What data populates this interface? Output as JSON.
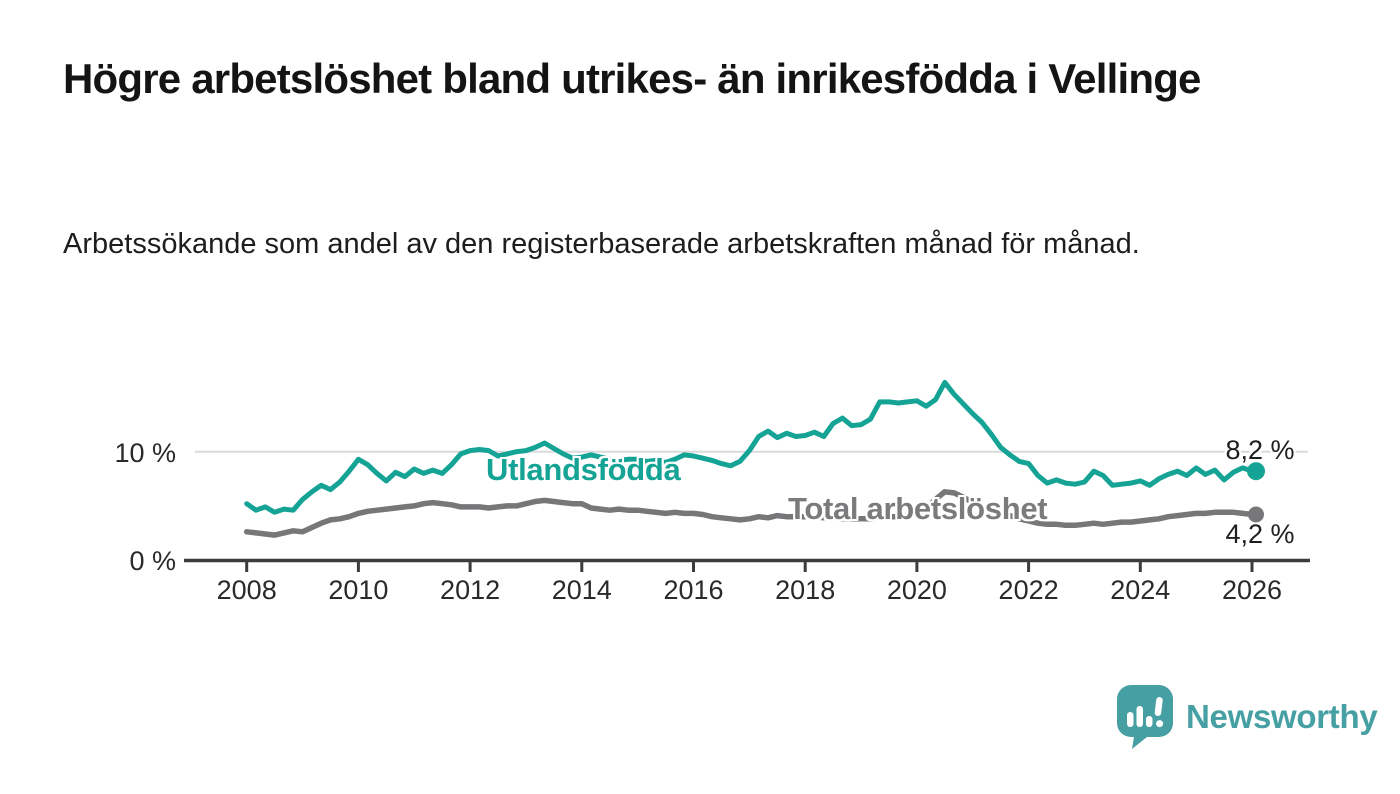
{
  "title": "Högre arbetslöshet bland utrikes- än inrikesfödda i Vellinge",
  "subtitle": "Arbetssökande som andel av den registerbaserade arbetskraften månad för månad.",
  "logo": {
    "text": "Newsworthy"
  },
  "colors": {
    "accent_teal": "#14a394",
    "line_gray": "#77777a",
    "label_gray": "#7b7b7e",
    "logo_teal": "#46a0a3",
    "grid": "#dadada",
    "axis": "#3c3c3c",
    "text_dark": "#1f1f1f"
  },
  "chart_data": {
    "type": "line",
    "title": "Högre arbetslöshet bland utrikes- än inrikesfödda i Vellinge",
    "subtitle": "Arbetssökande som andel av den registerbaserade arbetskraften månad för månad.",
    "unit": "%",
    "x_start": 2008.0,
    "x_step_years": 0.1666667,
    "x_ticks": [
      "2008",
      "2010",
      "2012",
      "2014",
      "2016",
      "2018",
      "2020",
      "2022",
      "2024",
      "2026"
    ],
    "xlim": [
      2007.9,
      2026.2
    ],
    "ylim": [
      0,
      17
    ],
    "grid": "horizontal-10-only",
    "legend_position": "inline-labels",
    "y_gridlines": [
      {
        "value": 10,
        "label": "10 %"
      },
      {
        "value": 0,
        "label": "0 %"
      }
    ],
    "series": [
      {
        "name": "Utlandsfödda",
        "color": "#14a394",
        "end_label": "8,2 %",
        "end_value": 8.2,
        "values": [
          5.2,
          4.6,
          4.9,
          4.4,
          4.7,
          4.6,
          5.6,
          6.3,
          6.9,
          6.5,
          7.2,
          8.2,
          9.3,
          8.8,
          8.0,
          7.3,
          8.1,
          7.7,
          8.4,
          8.0,
          8.3,
          8.0,
          8.8,
          9.8,
          10.1,
          10.2,
          10.1,
          9.6,
          9.8,
          10.0,
          10.1,
          10.4,
          10.8,
          10.3,
          9.8,
          9.4,
          9.5,
          9.7,
          9.5,
          9.3,
          9.2,
          9.3,
          9.3,
          9.1,
          9.2,
          9.0,
          9.3,
          9.7,
          9.6,
          9.4,
          9.2,
          8.9,
          8.7,
          9.1,
          10.1,
          11.4,
          11.9,
          11.3,
          11.7,
          11.4,
          11.5,
          11.8,
          11.4,
          12.6,
          13.1,
          12.4,
          12.5,
          13.0,
          14.6,
          14.6,
          14.5,
          14.6,
          14.7,
          14.2,
          14.8,
          16.4,
          15.3,
          14.4,
          13.5,
          12.7,
          11.6,
          10.4,
          9.7,
          9.1,
          8.9,
          7.8,
          7.1,
          7.4,
          7.1,
          7.0,
          7.2,
          8.2,
          7.8,
          6.9,
          7.0,
          7.1,
          7.3,
          6.9,
          7.5,
          7.9,
          8.2,
          7.8,
          8.5,
          7.9,
          8.3,
          7.4,
          8.1,
          8.5,
          8.2
        ]
      },
      {
        "name": "Total arbetslöshet",
        "color": "#77777a",
        "end_label": "4,2 %",
        "end_value": 4.2,
        "values": [
          2.6,
          2.5,
          2.4,
          2.3,
          2.5,
          2.7,
          2.6,
          3.0,
          3.4,
          3.7,
          3.8,
          4.0,
          4.3,
          4.5,
          4.6,
          4.7,
          4.8,
          4.9,
          5.0,
          5.2,
          5.3,
          5.2,
          5.1,
          4.9,
          4.9,
          4.9,
          4.8,
          4.9,
          5.0,
          5.0,
          5.2,
          5.4,
          5.5,
          5.4,
          5.3,
          5.2,
          5.2,
          4.8,
          4.7,
          4.6,
          4.7,
          4.6,
          4.6,
          4.5,
          4.4,
          4.3,
          4.4,
          4.3,
          4.3,
          4.2,
          4.0,
          3.9,
          3.8,
          3.7,
          3.8,
          4.0,
          3.9,
          4.1,
          4.0,
          4.0,
          4.0,
          4.0,
          3.9,
          3.9,
          3.8,
          3.8,
          3.8,
          3.8,
          3.9,
          4.0,
          4.0,
          4.1,
          4.3,
          4.8,
          5.6,
          6.3,
          6.2,
          5.8,
          5.3,
          4.9,
          4.6,
          4.3,
          4.1,
          3.8,
          3.6,
          3.4,
          3.3,
          3.3,
          3.2,
          3.2,
          3.3,
          3.4,
          3.3,
          3.4,
          3.5,
          3.5,
          3.6,
          3.7,
          3.8,
          4.0,
          4.1,
          4.2,
          4.3,
          4.3,
          4.4,
          4.4,
          4.4,
          4.3,
          4.2
        ]
      }
    ]
  }
}
